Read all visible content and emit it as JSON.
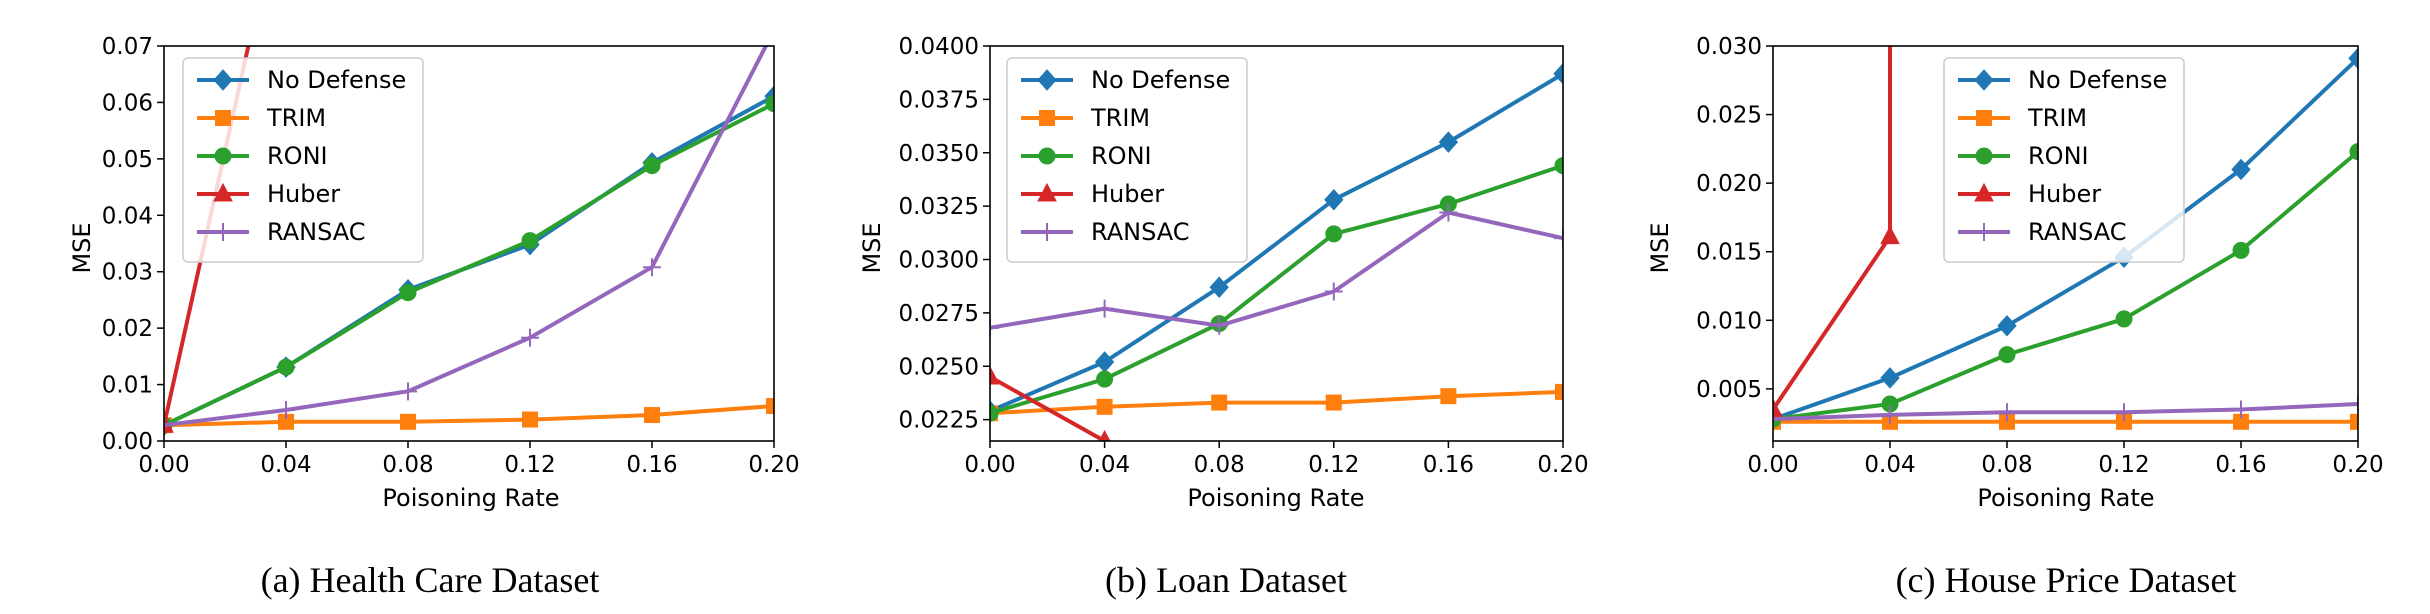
{
  "colors": {
    "No Defense": "#1f77b4",
    "TRIM": "#ff7f0e",
    "RONI": "#2ca02c",
    "Huber": "#d62728",
    "RANSAC": "#9467bd"
  },
  "chart_data": [
    {
      "type": "line",
      "caption": "(a) Health Care Dataset",
      "xlabel": "Poisoning Rate",
      "ylabel": "MSE",
      "xlim": [
        0,
        0.2
      ],
      "ylim": [
        0,
        0.07
      ],
      "xticks": [
        "0.00",
        "0.04",
        "0.08",
        "0.12",
        "0.16",
        "0.20"
      ],
      "yticks": [
        "0.00",
        "0.01",
        "0.02",
        "0.03",
        "0.04",
        "0.05",
        "0.06",
        "0.07"
      ],
      "legend": "top-left",
      "x": [
        0,
        0.04,
        0.08,
        0.12,
        0.16,
        0.2
      ],
      "series": [
        {
          "name": "No Defense",
          "marker": "diamond",
          "x": [
            0,
            0.04,
            0.08,
            0.12,
            0.16,
            0.2
          ],
          "values": [
            0.0028,
            0.0131,
            0.0268,
            0.0348,
            0.0493,
            0.0611
          ]
        },
        {
          "name": "TRIM",
          "marker": "square",
          "x": [
            0,
            0.04,
            0.08,
            0.12,
            0.16,
            0.2
          ],
          "values": [
            0.0028,
            0.0034,
            0.0034,
            0.0038,
            0.0046,
            0.0062
          ]
        },
        {
          "name": "RONI",
          "marker": "circle",
          "x": [
            0,
            0.04,
            0.08,
            0.12,
            0.16,
            0.2
          ],
          "values": [
            0.0028,
            0.0131,
            0.0263,
            0.0355,
            0.0488,
            0.0598
          ]
        },
        {
          "name": "Huber",
          "marker": "triangle",
          "x": [
            0,
            0.04
          ],
          "values": [
            0.0028,
            0.1
          ]
        },
        {
          "name": "RANSAC",
          "marker": "plus",
          "x": [
            0,
            0.04,
            0.08,
            0.12,
            0.16,
            0.2
          ],
          "values": [
            0.0028,
            0.0055,
            0.0088,
            0.0183,
            0.0308,
            0.0728
          ]
        }
      ]
    },
    {
      "type": "line",
      "caption": "(b) Loan Dataset",
      "xlabel": "Poisoning Rate",
      "ylabel": "MSE",
      "xlim": [
        0,
        0.2
      ],
      "ylim": [
        0.0215,
        0.04
      ],
      "xticks": [
        "0.00",
        "0.04",
        "0.08",
        "0.12",
        "0.16",
        "0.20"
      ],
      "yticks": [
        "0.0225",
        "0.0250",
        "0.0275",
        "0.0300",
        "0.0325",
        "0.0350",
        "0.0375",
        "0.0400"
      ],
      "legend": "top-left",
      "x": [
        0,
        0.04,
        0.08,
        0.12,
        0.16,
        0.2
      ],
      "series": [
        {
          "name": "No Defense",
          "marker": "diamond",
          "x": [
            0,
            0.04,
            0.08,
            0.12,
            0.16,
            0.2
          ],
          "values": [
            0.0229,
            0.0252,
            0.0287,
            0.0328,
            0.0355,
            0.0387
          ]
        },
        {
          "name": "TRIM",
          "marker": "square",
          "x": [
            0,
            0.04,
            0.08,
            0.12,
            0.16,
            0.2
          ],
          "values": [
            0.0228,
            0.0231,
            0.0233,
            0.0233,
            0.0236,
            0.0238
          ]
        },
        {
          "name": "RONI",
          "marker": "circle",
          "x": [
            0,
            0.04,
            0.08,
            0.12,
            0.16,
            0.2
          ],
          "values": [
            0.0228,
            0.0244,
            0.027,
            0.0312,
            0.0326,
            0.0344
          ]
        },
        {
          "name": "Huber",
          "marker": "triangle",
          "x": [
            0,
            0.04
          ],
          "values": [
            0.0245,
            0.0215
          ]
        },
        {
          "name": "RANSAC",
          "marker": "plus",
          "x": [
            0,
            0.04,
            0.08,
            0.12,
            0.16,
            0.2
          ],
          "values": [
            0.0268,
            0.0277,
            0.0269,
            0.0285,
            0.0322,
            0.031
          ]
        }
      ]
    },
    {
      "type": "line",
      "caption": "(c) House Price Dataset",
      "xlabel": "Poisoning Rate",
      "ylabel": "MSE",
      "xlim": [
        0,
        0.2
      ],
      "ylim": [
        0.0012,
        0.03
      ],
      "xticks": [
        "0.00",
        "0.04",
        "0.08",
        "0.12",
        "0.16",
        "0.20"
      ],
      "yticks": [
        "0.005",
        "0.010",
        "0.015",
        "0.020",
        "0.025",
        "0.030"
      ],
      "legend": "top-center",
      "x": [
        0,
        0.04,
        0.08,
        0.12,
        0.16,
        0.2
      ],
      "series": [
        {
          "name": "No Defense",
          "marker": "diamond",
          "x": [
            0,
            0.04,
            0.08,
            0.12,
            0.16,
            0.2
          ],
          "values": [
            0.0028,
            0.0058,
            0.0096,
            0.0146,
            0.021,
            0.0291
          ]
        },
        {
          "name": "TRIM",
          "marker": "square",
          "x": [
            0,
            0.04,
            0.08,
            0.12,
            0.16,
            0.2
          ],
          "values": [
            0.0026,
            0.0026,
            0.0026,
            0.0026,
            0.0026,
            0.0026
          ]
        },
        {
          "name": "RONI",
          "marker": "circle",
          "x": [
            0,
            0.04,
            0.08,
            0.12,
            0.16,
            0.2
          ],
          "values": [
            0.0028,
            0.0039,
            0.0075,
            0.0101,
            0.0151,
            0.0223
          ]
        },
        {
          "name": "Huber",
          "marker": "triangle",
          "x": [
            0,
            0.04,
            0.04
          ],
          "values": [
            0.0035,
            0.0161,
            0.05
          ]
        },
        {
          "name": "RANSAC",
          "marker": "plus",
          "x": [
            0,
            0.04,
            0.08,
            0.12,
            0.16,
            0.2
          ],
          "values": [
            0.0028,
            0.0031,
            0.0033,
            0.0033,
            0.0035,
            0.0039
          ]
        }
      ]
    }
  ]
}
